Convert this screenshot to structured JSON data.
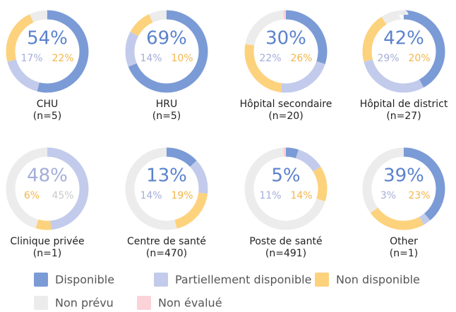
{
  "chart_data": {
    "type": "donut",
    "legend": [
      {
        "name": "Disponible",
        "color": "#7b9bd6",
        "label_color": "#5b82cc"
      },
      {
        "name": "Partiellement disponible",
        "color": "#c3cbec",
        "label_color": "#a3add8"
      },
      {
        "name": "Non disponible",
        "color": "#fdd27d",
        "label_color": "#f2b54a"
      },
      {
        "name": "Non prévu",
        "color": "#ececec",
        "label_color": "#c9c9c9"
      },
      {
        "name": "Non évalué",
        "color": "#fbd2d8",
        "label_color": "#f2a9b4"
      }
    ],
    "panels": [
      {
        "title": "CHU",
        "subtitle": "(n=5)",
        "values": [
          54,
          17,
          22,
          7,
          0
        ],
        "value_labels": [
          "54%",
          "17%",
          "22%",
          null,
          null
        ],
        "main": 0
      },
      {
        "title": "HRU",
        "subtitle": "(n=5)",
        "values": [
          69,
          14,
          10,
          7,
          0
        ],
        "value_labels": [
          "69%",
          "14%",
          "10%",
          null,
          null
        ],
        "main": 0
      },
      {
        "title": "Hôpital secondaire",
        "subtitle": "(n=20)",
        "values": [
          30,
          22,
          26,
          21,
          1
        ],
        "value_labels": [
          "30%",
          "22%",
          "26%",
          null,
          null
        ],
        "main": 0
      },
      {
        "title": "Hôpital de district",
        "subtitle": "(n=27)",
        "values": [
          42,
          29,
          20,
          9,
          0
        ],
        "value_labels": [
          "42%",
          "29%",
          "20%",
          null,
          null
        ],
        "main": 0
      },
      {
        "title": "Clinique privée",
        "subtitle": "(n=1)",
        "values": [
          0,
          48,
          6,
          45,
          0
        ],
        "value_labels": [
          null,
          "48%",
          "6%",
          "45%",
          null
        ],
        "main": 1
      },
      {
        "title": "Centre de santé",
        "subtitle": "(n=470)",
        "values": [
          13,
          14,
          19,
          54,
          0
        ],
        "value_labels": [
          "13%",
          "14%",
          "19%",
          null,
          null
        ],
        "main": 0
      },
      {
        "title": "Poste de santé",
        "subtitle": "(n=491)",
        "values": [
          5,
          11,
          14,
          69,
          1
        ],
        "value_labels": [
          "5%",
          "11%",
          "14%",
          null,
          null
        ],
        "main": 0
      },
      {
        "title": "Other",
        "subtitle": "(n=1)",
        "values": [
          39,
          3,
          23,
          35,
          0
        ],
        "value_labels": [
          "39%",
          "3%",
          "23%",
          null,
          null
        ],
        "main": 0
      }
    ]
  }
}
